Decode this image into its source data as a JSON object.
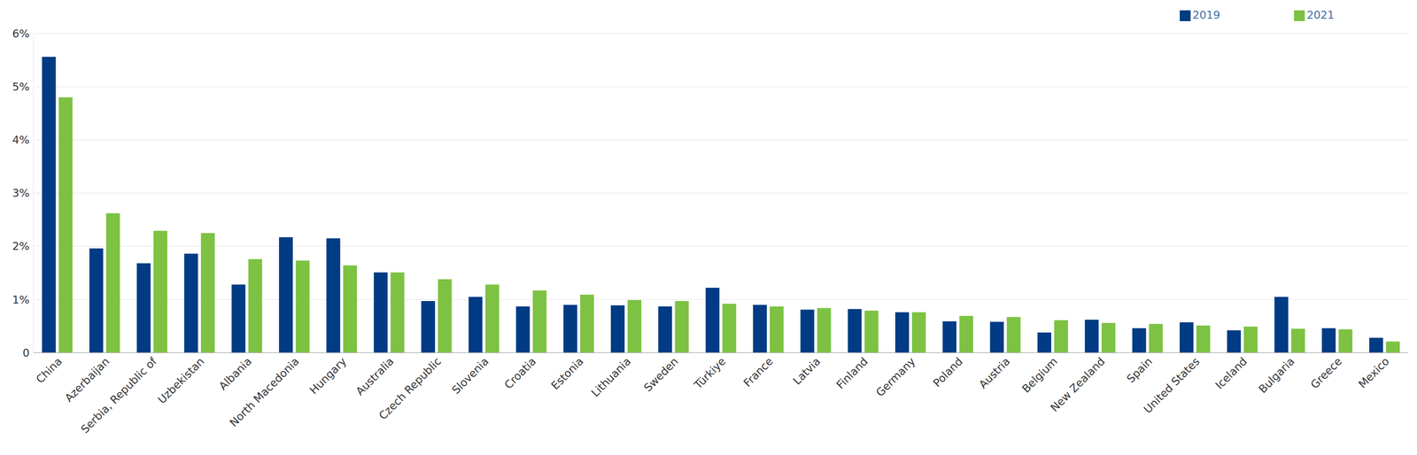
{
  "chart_data": {
    "type": "bar",
    "categories": [
      "China",
      "Azerbaijan",
      "Serbia, Republic of",
      "Uzbekistan",
      "Albania",
      "North Macedonia",
      "Hungary",
      "Australia",
      "Czech Republic",
      "Slovenia",
      "Croatia",
      "Estonia",
      "Lithuania",
      "Sweden",
      "Türkiye",
      "France",
      "Latvia",
      "Finland",
      "Germany",
      "Poland",
      "Austria",
      "Belgium",
      "New Zealand",
      "Spain",
      "United States",
      "Iceland",
      "Bulgaria",
      "Greece",
      "Mexico"
    ],
    "series": [
      {
        "name": "2019",
        "color": "#003b84",
        "values": [
          5.56,
          1.96,
          1.68,
          1.86,
          1.28,
          2.17,
          2.15,
          1.51,
          0.97,
          1.05,
          0.87,
          0.9,
          0.89,
          0.87,
          1.22,
          0.9,
          0.81,
          0.82,
          0.76,
          0.59,
          0.58,
          0.38,
          0.62,
          0.46,
          0.57,
          0.42,
          1.05,
          0.46,
          0.28
        ]
      },
      {
        "name": "2021",
        "color": "#7dc242",
        "values": [
          4.8,
          2.62,
          2.29,
          2.25,
          1.76,
          1.73,
          1.64,
          1.51,
          1.38,
          1.28,
          1.17,
          1.09,
          0.99,
          0.97,
          0.92,
          0.87,
          0.84,
          0.79,
          0.76,
          0.69,
          0.67,
          0.61,
          0.56,
          0.54,
          0.51,
          0.49,
          0.45,
          0.44,
          0.21
        ]
      }
    ],
    "ylim": [
      0,
      6
    ],
    "yticks": [
      0,
      {
        "value": 1,
        "label": "1%"
      },
      {
        "value": 2,
        "label": "2%"
      },
      {
        "value": 3,
        "label": "3%"
      },
      {
        "value": 4,
        "label": "4%"
      },
      {
        "value": 5,
        "label": "5%"
      },
      {
        "value": 6,
        "label": "6%"
      }
    ],
    "grid": true,
    "legend": "top-right"
  }
}
